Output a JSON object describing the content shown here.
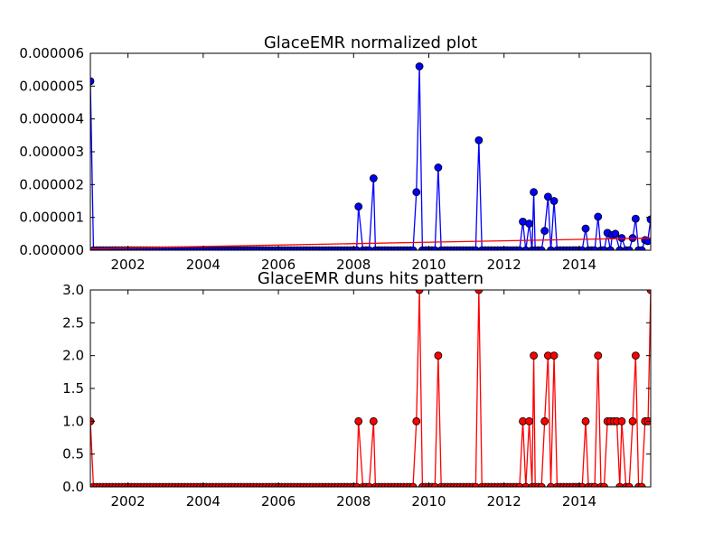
{
  "chart_data": [
    {
      "type": "line",
      "title": "GlaceEMR normalized plot",
      "xlim": [
        2001.0,
        2015.9
      ],
      "ylim": [
        0,
        6e-06
      ],
      "x_ticks": [
        2002,
        2004,
        2006,
        2008,
        2010,
        2012,
        2014
      ],
      "x_tick_labels": [
        "2002",
        "2004",
        "2006",
        "2008",
        "2010",
        "2012",
        "2014"
      ],
      "y_ticks": [
        0,
        1e-06,
        2e-06,
        3e-06,
        4e-06,
        5e-06,
        6e-06
      ],
      "y_tick_labels": [
        "0.000000",
        "0.000001",
        "0.000002",
        "0.000003",
        "0.000004",
        "0.000005",
        "0.000006"
      ],
      "grid": false,
      "series": [
        {
          "color": "#0000ff",
          "marker": "circle",
          "baseline_x_range": [
            2001.0,
            2015.9
          ],
          "baseline_step": 0.0833,
          "baseline_value": 0,
          "points": [
            [
              2001.0,
              5.15e-06
            ],
            [
              2008.13,
              1.33e-06
            ],
            [
              2008.53,
              2.19e-06
            ],
            [
              2009.67,
              1.77e-06
            ],
            [
              2009.75,
              5.6e-06
            ],
            [
              2010.25,
              2.52e-06
            ],
            [
              2011.33,
              3.35e-06
            ],
            [
              2012.5,
              8.7e-07
            ],
            [
              2012.67,
              8.1e-07
            ],
            [
              2012.79,
              1.77e-06
            ],
            [
              2013.08,
              5.9e-07
            ],
            [
              2013.17,
              1.63e-06
            ],
            [
              2013.33,
              1.5e-06
            ],
            [
              2014.17,
              6.6e-07
            ],
            [
              2014.5,
              1.02e-06
            ],
            [
              2014.75,
              5.3e-07
            ],
            [
              2014.88,
              4.6e-07
            ],
            [
              2014.96,
              5e-07
            ],
            [
              2015.13,
              3.7e-07
            ],
            [
              2015.42,
              3.7e-07
            ],
            [
              2015.5,
              9.6e-07
            ],
            [
              2015.75,
              3.1e-07
            ],
            [
              2015.82,
              2.8e-07
            ],
            [
              2015.9,
              9.4e-07
            ]
          ]
        },
        {
          "color": "#ff0000",
          "marker": "none",
          "x": [
            2001.0,
            2015.9
          ],
          "y": [
            5e-08,
            3.7e-07
          ]
        }
      ]
    },
    {
      "type": "line",
      "title": "GlaceEMR duns hits pattern",
      "xlim": [
        2001.0,
        2015.9
      ],
      "ylim": [
        0,
        3
      ],
      "x_ticks": [
        2002,
        2004,
        2006,
        2008,
        2010,
        2012,
        2014
      ],
      "x_tick_labels": [
        "2002",
        "2004",
        "2006",
        "2008",
        "2010",
        "2012",
        "2014"
      ],
      "y_ticks": [
        0,
        0.5,
        1,
        1.5,
        2,
        2.5,
        3
      ],
      "y_tick_labels": [
        "0.0",
        "0.5",
        "1.0",
        "1.5",
        "2.0",
        "2.5",
        "3.0"
      ],
      "grid": false,
      "series": [
        {
          "color": "#ff0000",
          "marker": "circle",
          "baseline_x_range": [
            2001.0,
            2015.9
          ],
          "baseline_step": 0.0833,
          "baseline_value": 0,
          "points": [
            [
              2001.0,
              1
            ],
            [
              2008.13,
              1
            ],
            [
              2008.53,
              1
            ],
            [
              2009.67,
              1
            ],
            [
              2009.75,
              3
            ],
            [
              2010.25,
              2
            ],
            [
              2011.33,
              3
            ],
            [
              2012.5,
              1
            ],
            [
              2012.67,
              1
            ],
            [
              2012.79,
              2
            ],
            [
              2013.08,
              1
            ],
            [
              2013.17,
              2
            ],
            [
              2013.33,
              2
            ],
            [
              2014.17,
              1
            ],
            [
              2014.5,
              2
            ],
            [
              2014.75,
              1
            ],
            [
              2014.83,
              1
            ],
            [
              2014.92,
              1
            ],
            [
              2015.0,
              1
            ],
            [
              2015.13,
              1
            ],
            [
              2015.42,
              1
            ],
            [
              2015.5,
              2
            ],
            [
              2015.75,
              1
            ],
            [
              2015.83,
              1
            ],
            [
              2015.9,
              3
            ]
          ]
        }
      ]
    }
  ]
}
